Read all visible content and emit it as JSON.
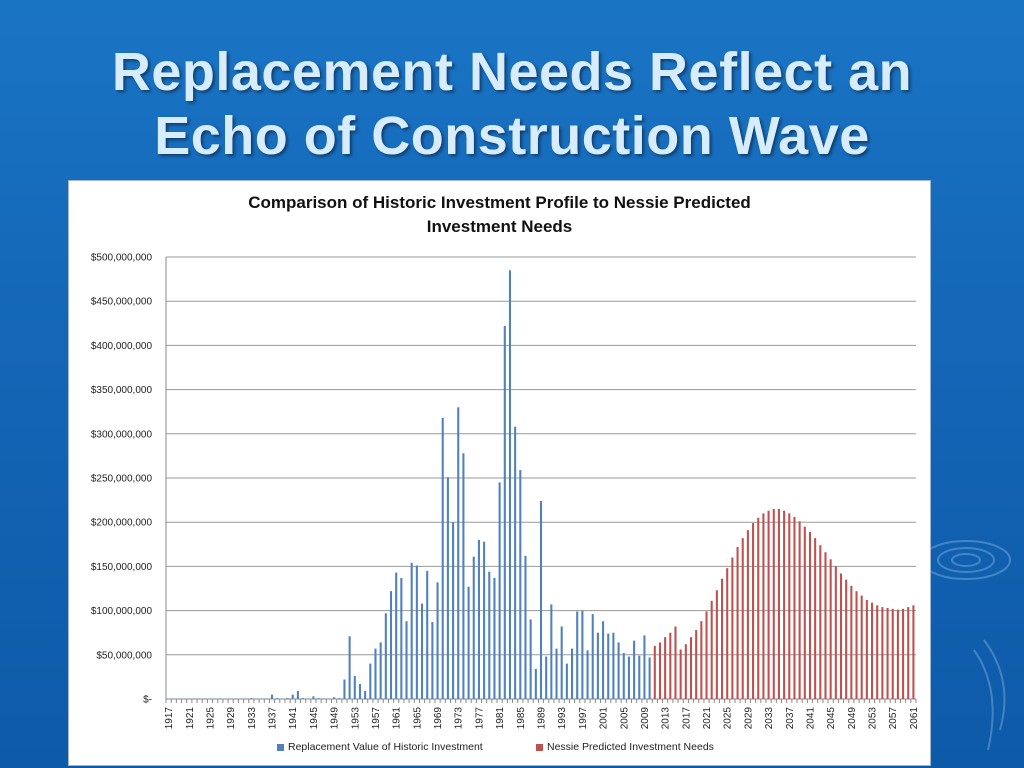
{
  "slide": {
    "title_line1": "Replacement Needs Reflect an",
    "title_line2": "Echo of Construction Wave"
  },
  "chart_data": {
    "type": "bar",
    "title_line1": "Comparison of Historic Investment Profile to Nessie Predicted",
    "title_line2": "Investment Needs",
    "x_start": 1917,
    "x_end": 2062,
    "x_tick_labels": [
      "1917",
      "1921",
      "1925",
      "1929",
      "1933",
      "1937",
      "1941",
      "1945",
      "1949",
      "1953",
      "1957",
      "1961",
      "1965",
      "1969",
      "1973",
      "1977",
      "1981",
      "1985",
      "1989",
      "1993",
      "1997",
      "2001",
      "2005",
      "2009",
      "2013",
      "2017",
      "2021",
      "2025",
      "2029",
      "2033",
      "2037",
      "2041",
      "2045",
      "2049",
      "2053",
      "2057",
      "2061"
    ],
    "y_tick_labels": [
      "$-",
      "$50,000,000",
      "$100,000,000",
      "$150,000,000",
      "$200,000,000",
      "$250,000,000",
      "$300,000,000",
      "$350,000,000",
      "$400,000,000",
      "$450,000,000",
      "$500,000,000"
    ],
    "ylim": [
      0,
      500000000
    ],
    "grid": true,
    "legend_position": "bottom",
    "series": [
      {
        "name": "Replacement Value of Historic Investment",
        "color": "#4f81bd",
        "points": [
          [
            1917,
            500000
          ],
          [
            1918,
            500000
          ],
          [
            1919,
            500000
          ],
          [
            1920,
            500000
          ],
          [
            1921,
            500000
          ],
          [
            1922,
            500000
          ],
          [
            1923,
            500000
          ],
          [
            1924,
            500000
          ],
          [
            1925,
            500000
          ],
          [
            1926,
            500000
          ],
          [
            1927,
            500000
          ],
          [
            1928,
            500000
          ],
          [
            1929,
            500000
          ],
          [
            1930,
            500000
          ],
          [
            1931,
            500000
          ],
          [
            1932,
            500000
          ],
          [
            1933,
            1000000
          ],
          [
            1934,
            500000
          ],
          [
            1935,
            500000
          ],
          [
            1936,
            500000
          ],
          [
            1937,
            5000000
          ],
          [
            1938,
            1000000
          ],
          [
            1939,
            500000
          ],
          [
            1940,
            1000000
          ],
          [
            1941,
            5000000
          ],
          [
            1942,
            9000000
          ],
          [
            1943,
            1000000
          ],
          [
            1944,
            500000
          ],
          [
            1945,
            3000000
          ],
          [
            1946,
            1000000
          ],
          [
            1947,
            500000
          ],
          [
            1948,
            500000
          ],
          [
            1949,
            2000000
          ],
          [
            1950,
            1000000
          ],
          [
            1951,
            22000000
          ],
          [
            1952,
            71000000
          ],
          [
            1953,
            26000000
          ],
          [
            1954,
            17000000
          ],
          [
            1955,
            9000000
          ],
          [
            1956,
            40000000
          ],
          [
            1957,
            57000000
          ],
          [
            1958,
            64000000
          ],
          [
            1959,
            97000000
          ],
          [
            1960,
            122000000
          ],
          [
            1961,
            143000000
          ],
          [
            1962,
            137000000
          ],
          [
            1963,
            88000000
          ],
          [
            1964,
            154000000
          ],
          [
            1965,
            151000000
          ],
          [
            1966,
            108000000
          ],
          [
            1967,
            145000000
          ],
          [
            1968,
            87000000
          ],
          [
            1969,
            132000000
          ],
          [
            1970,
            318000000
          ],
          [
            1971,
            251000000
          ],
          [
            1972,
            200000000
          ],
          [
            1973,
            330000000
          ],
          [
            1974,
            278000000
          ],
          [
            1975,
            127000000
          ],
          [
            1976,
            161000000
          ],
          [
            1977,
            180000000
          ],
          [
            1978,
            178000000
          ],
          [
            1979,
            144000000
          ],
          [
            1980,
            137000000
          ],
          [
            1981,
            245000000
          ],
          [
            1982,
            422000000
          ],
          [
            1983,
            485000000
          ],
          [
            1984,
            308000000
          ],
          [
            1985,
            259000000
          ],
          [
            1986,
            162000000
          ],
          [
            1987,
            90000000
          ],
          [
            1988,
            34000000
          ],
          [
            1989,
            224000000
          ],
          [
            1990,
            48000000
          ],
          [
            1991,
            107000000
          ],
          [
            1992,
            57000000
          ],
          [
            1993,
            82000000
          ],
          [
            1994,
            40000000
          ],
          [
            1995,
            57000000
          ],
          [
            1996,
            99000000
          ],
          [
            1997,
            100000000
          ],
          [
            1998,
            55000000
          ],
          [
            1999,
            96000000
          ],
          [
            2000,
            75000000
          ],
          [
            2001,
            88000000
          ],
          [
            2002,
            74000000
          ],
          [
            2003,
            75000000
          ],
          [
            2004,
            64000000
          ],
          [
            2005,
            52000000
          ],
          [
            2006,
            48000000
          ],
          [
            2007,
            66000000
          ],
          [
            2008,
            49000000
          ],
          [
            2009,
            72000000
          ],
          [
            2010,
            47000000
          ]
        ]
      },
      {
        "name": "Nessie Predicted Investment Needs",
        "color": "#c0504d",
        "points": [
          [
            2011,
            60000000
          ],
          [
            2012,
            64000000
          ],
          [
            2013,
            70000000
          ],
          [
            2014,
            75000000
          ],
          [
            2015,
            82000000
          ],
          [
            2016,
            56000000
          ],
          [
            2017,
            62000000
          ],
          [
            2018,
            70000000
          ],
          [
            2019,
            78000000
          ],
          [
            2020,
            88000000
          ],
          [
            2021,
            99000000
          ],
          [
            2022,
            111000000
          ],
          [
            2023,
            123000000
          ],
          [
            2024,
            136000000
          ],
          [
            2025,
            148000000
          ],
          [
            2026,
            160000000
          ],
          [
            2027,
            172000000
          ],
          [
            2028,
            182000000
          ],
          [
            2029,
            191000000
          ],
          [
            2030,
            199000000
          ],
          [
            2031,
            205000000
          ],
          [
            2032,
            210000000
          ],
          [
            2033,
            213000000
          ],
          [
            2034,
            215000000
          ],
          [
            2035,
            215000000
          ],
          [
            2036,
            213000000
          ],
          [
            2037,
            210000000
          ],
          [
            2038,
            206000000
          ],
          [
            2039,
            201000000
          ],
          [
            2040,
            195000000
          ],
          [
            2041,
            189000000
          ],
          [
            2042,
            182000000
          ],
          [
            2043,
            174000000
          ],
          [
            2044,
            166000000
          ],
          [
            2045,
            158000000
          ],
          [
            2046,
            150000000
          ],
          [
            2047,
            142000000
          ],
          [
            2048,
            135000000
          ],
          [
            2049,
            128000000
          ],
          [
            2050,
            122000000
          ],
          [
            2051,
            117000000
          ],
          [
            2052,
            112000000
          ],
          [
            2053,
            109000000
          ],
          [
            2054,
            106000000
          ],
          [
            2055,
            104000000
          ],
          [
            2056,
            103000000
          ],
          [
            2057,
            102000000
          ],
          [
            2058,
            101000000
          ],
          [
            2059,
            102000000
          ],
          [
            2060,
            104000000
          ],
          [
            2061,
            106000000
          ]
        ]
      }
    ]
  }
}
